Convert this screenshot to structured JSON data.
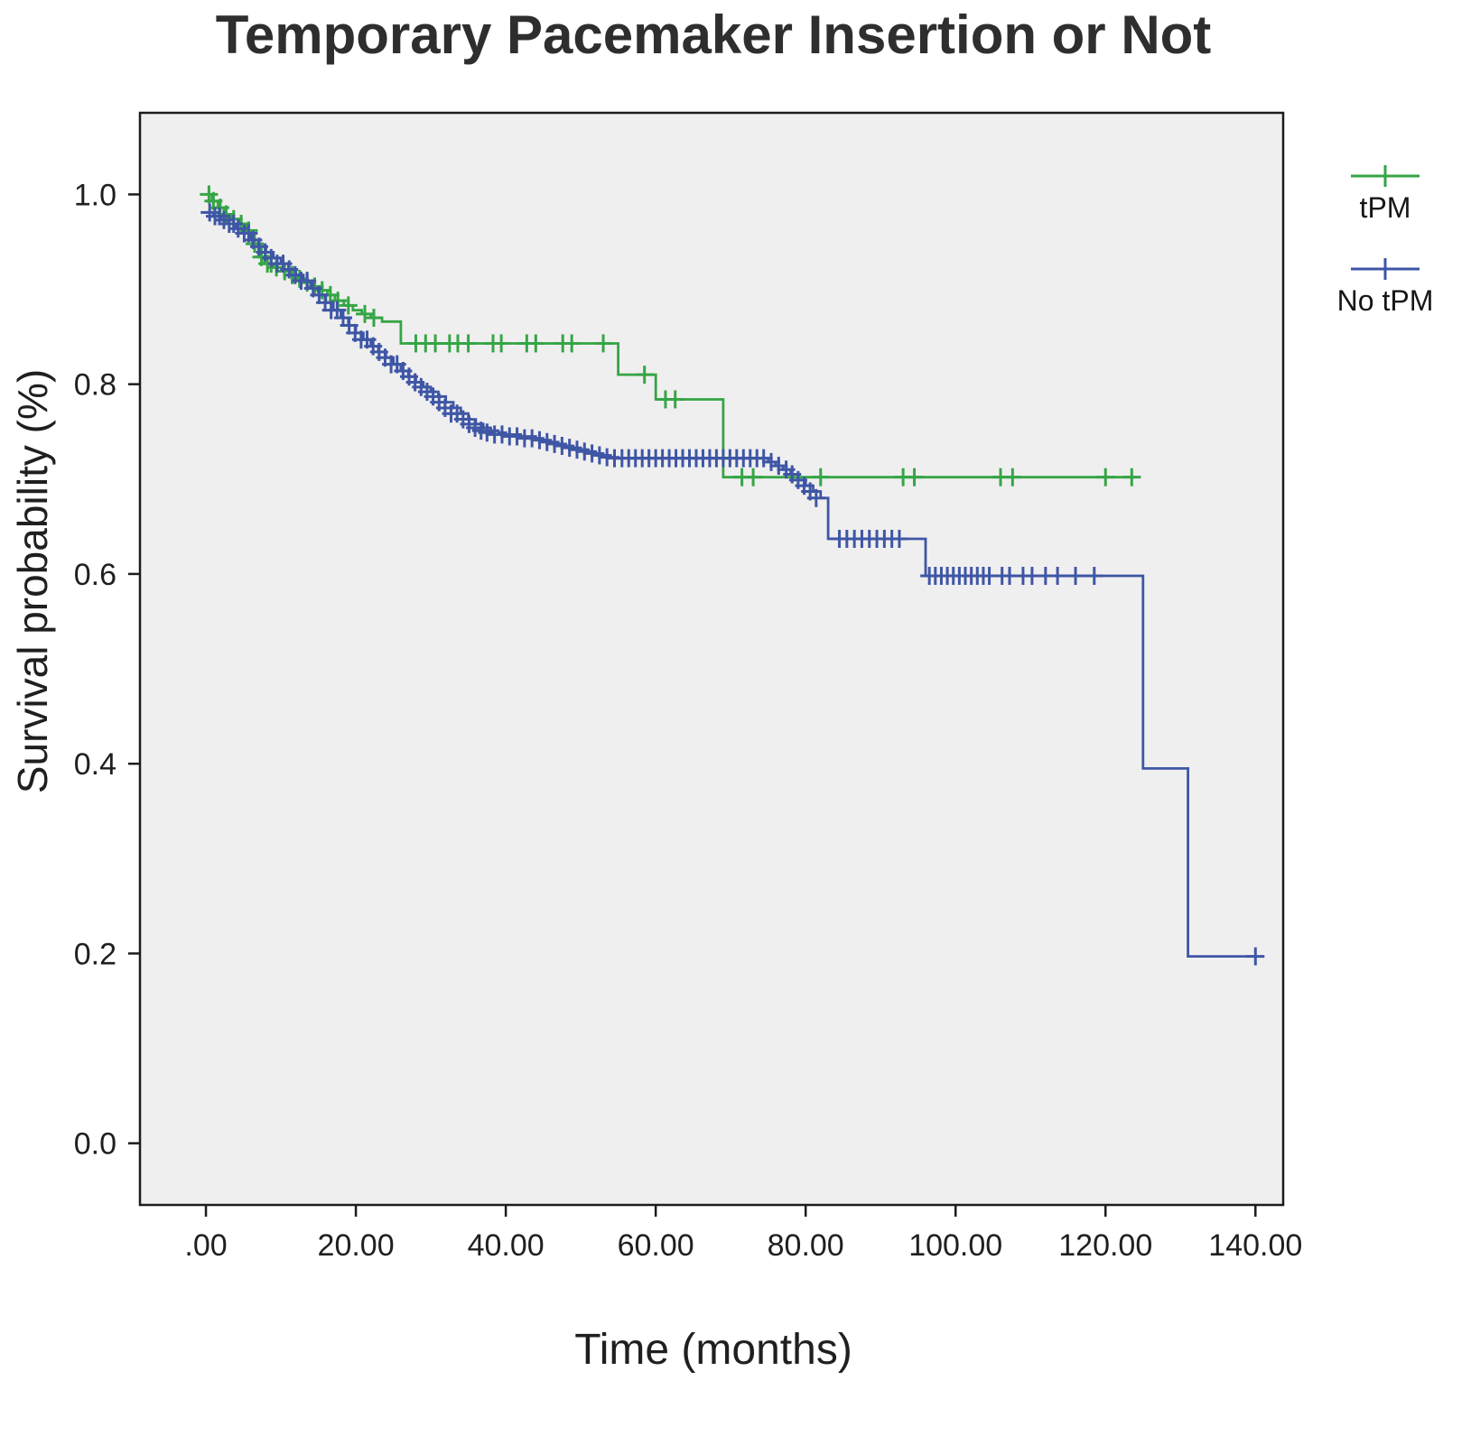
{
  "chart_data": {
    "type": "line",
    "chart_kind": "kaplan_meier_survival_step",
    "title": "Temporary Pacemaker Insertion or Not",
    "xlabel": "Time (months)",
    "ylabel": "Survival probability (%)",
    "xlim": [
      -8.8,
      143.7
    ],
    "ylim": [
      -0.065,
      1.086
    ],
    "grid": false,
    "plot_bg": "#f0efef",
    "frame_color": "#1c1c1c",
    "text_color": "#1f1f1f",
    "x_ticks": [
      {
        "value": 0,
        "label": ".00"
      },
      {
        "value": 20,
        "label": "20.00"
      },
      {
        "value": 40,
        "label": "40.00"
      },
      {
        "value": 60,
        "label": "60.00"
      },
      {
        "value": 80,
        "label": "80.00"
      },
      {
        "value": 100,
        "label": "100.00"
      },
      {
        "value": 120,
        "label": "120.00"
      },
      {
        "value": 140,
        "label": "140.00"
      }
    ],
    "y_ticks": [
      {
        "value": 0.0,
        "label": "0.0"
      },
      {
        "value": 0.2,
        "label": "0.2"
      },
      {
        "value": 0.4,
        "label": "0.4"
      },
      {
        "value": 0.6,
        "label": "0.6"
      },
      {
        "value": 0.8,
        "label": "0.8"
      },
      {
        "value": 1.0,
        "label": "1.0"
      }
    ],
    "legend": {
      "position": "right",
      "items": [
        {
          "label": "tPM",
          "color": "#35a546"
        },
        {
          "label": "No tPM",
          "color": "#3e56a5"
        }
      ]
    },
    "series": [
      {
        "id": "tpm",
        "name": "tPM",
        "color": "#35a546",
        "steps": [
          [
            0,
            1.0
          ],
          [
            0.8,
            0.993
          ],
          [
            1.6,
            0.986
          ],
          [
            2.4,
            0.979
          ],
          [
            3.4,
            0.974
          ],
          [
            4.4,
            0.969
          ],
          [
            5.4,
            0.962
          ],
          [
            6.2,
            0.948
          ],
          [
            7.0,
            0.934
          ],
          [
            7.8,
            0.927
          ],
          [
            9.0,
            0.923
          ],
          [
            10.2,
            0.919
          ],
          [
            11.2,
            0.915
          ],
          [
            12.2,
            0.911
          ],
          [
            13.2,
            0.907
          ],
          [
            14.2,
            0.903
          ],
          [
            15.2,
            0.899
          ],
          [
            16.2,
            0.894
          ],
          [
            17.2,
            0.888
          ],
          [
            18.4,
            0.883
          ],
          [
            19.6,
            0.878
          ],
          [
            20.8,
            0.874
          ],
          [
            22.0,
            0.87
          ],
          [
            23.5,
            0.866
          ],
          [
            26.0,
            0.843
          ],
          [
            55.0,
            0.81
          ],
          [
            60.0,
            0.784
          ],
          [
            69.0,
            0.702
          ],
          [
            124.0,
            0.702
          ]
        ],
        "censors": [
          [
            0.4,
            1.0
          ],
          [
            1.0,
            0.993
          ],
          [
            1.9,
            0.986
          ],
          [
            2.7,
            0.979
          ],
          [
            3.7,
            0.974
          ],
          [
            4.7,
            0.969
          ],
          [
            5.7,
            0.962
          ],
          [
            6.5,
            0.948
          ],
          [
            7.4,
            0.934
          ],
          [
            8.2,
            0.927
          ],
          [
            8.7,
            0.927
          ],
          [
            9.4,
            0.923
          ],
          [
            10.5,
            0.919
          ],
          [
            11.5,
            0.915
          ],
          [
            12.5,
            0.911
          ],
          [
            13.5,
            0.907
          ],
          [
            14.5,
            0.903
          ],
          [
            15.5,
            0.899
          ],
          [
            16.6,
            0.894
          ],
          [
            17.6,
            0.888
          ],
          [
            19.0,
            0.883
          ],
          [
            21.2,
            0.874
          ],
          [
            22.4,
            0.87
          ],
          [
            28.0,
            0.843
          ],
          [
            29.3,
            0.843
          ],
          [
            30.6,
            0.843
          ],
          [
            32.5,
            0.843
          ],
          [
            33.6,
            0.843
          ],
          [
            35.0,
            0.843
          ],
          [
            38.3,
            0.843
          ],
          [
            39.4,
            0.843
          ],
          [
            42.8,
            0.843
          ],
          [
            44.0,
            0.843
          ],
          [
            47.6,
            0.843
          ],
          [
            48.8,
            0.843
          ],
          [
            53.0,
            0.843
          ],
          [
            58.5,
            0.81
          ],
          [
            61.3,
            0.784
          ],
          [
            62.6,
            0.784
          ],
          [
            71.5,
            0.702
          ],
          [
            73.0,
            0.702
          ],
          [
            82.0,
            0.702
          ],
          [
            93.0,
            0.702
          ],
          [
            94.5,
            0.702
          ],
          [
            106.0,
            0.702
          ],
          [
            107.6,
            0.702
          ],
          [
            120.0,
            0.702
          ],
          [
            123.5,
            0.702
          ]
        ]
      },
      {
        "id": "no-tpm",
        "name": "No tPM",
        "color": "#3e56a5",
        "steps": [
          [
            0,
            0.981
          ],
          [
            1,
            0.977
          ],
          [
            2,
            0.973
          ],
          [
            3,
            0.969
          ],
          [
            4,
            0.964
          ],
          [
            5,
            0.959
          ],
          [
            6,
            0.952
          ],
          [
            7,
            0.945
          ],
          [
            8,
            0.939
          ],
          [
            9,
            0.933
          ],
          [
            10,
            0.927
          ],
          [
            11,
            0.921
          ],
          [
            12,
            0.915
          ],
          [
            13,
            0.909
          ],
          [
            14,
            0.901
          ],
          [
            15,
            0.894
          ],
          [
            16,
            0.886
          ],
          [
            17,
            0.878
          ],
          [
            18,
            0.87
          ],
          [
            19,
            0.862
          ],
          [
            20,
            0.854
          ],
          [
            21,
            0.847
          ],
          [
            22,
            0.84
          ],
          [
            23,
            0.834
          ],
          [
            24,
            0.828
          ],
          [
            25,
            0.821
          ],
          [
            26,
            0.814
          ],
          [
            27,
            0.808
          ],
          [
            28,
            0.802
          ],
          [
            29,
            0.797
          ],
          [
            30,
            0.792
          ],
          [
            31,
            0.787
          ],
          [
            32,
            0.781
          ],
          [
            33,
            0.775
          ],
          [
            34,
            0.769
          ],
          [
            35,
            0.763
          ],
          [
            36,
            0.758
          ],
          [
            37,
            0.754
          ],
          [
            38,
            0.751
          ],
          [
            39,
            0.749
          ],
          [
            40,
            0.747
          ],
          [
            42,
            0.745
          ],
          [
            44,
            0.743
          ],
          [
            45,
            0.741
          ],
          [
            46,
            0.739
          ],
          [
            47,
            0.737
          ],
          [
            48,
            0.735
          ],
          [
            49,
            0.733
          ],
          [
            50,
            0.731
          ],
          [
            51,
            0.729
          ],
          [
            52,
            0.727
          ],
          [
            53,
            0.725
          ],
          [
            54,
            0.723
          ],
          [
            55,
            0.722
          ],
          [
            75,
            0.718
          ],
          [
            76,
            0.714
          ],
          [
            77,
            0.71
          ],
          [
            78,
            0.705
          ],
          [
            79,
            0.699
          ],
          [
            80,
            0.693
          ],
          [
            81,
            0.687
          ],
          [
            82,
            0.68
          ],
          [
            83,
            0.637
          ],
          [
            96,
            0.598
          ],
          [
            125,
            0.395
          ],
          [
            131,
            0.197
          ],
          [
            140,
            0.197
          ]
        ],
        "censors": [
          [
            0.5,
            0.981
          ],
          [
            1.2,
            0.977
          ],
          [
            1.8,
            0.977
          ],
          [
            2.4,
            0.973
          ],
          [
            3.1,
            0.969
          ],
          [
            3.7,
            0.969
          ],
          [
            4.3,
            0.964
          ],
          [
            5.1,
            0.959
          ],
          [
            5.7,
            0.959
          ],
          [
            6.3,
            0.952
          ],
          [
            7.1,
            0.945
          ],
          [
            7.9,
            0.939
          ],
          [
            8.7,
            0.933
          ],
          [
            9.5,
            0.927
          ],
          [
            10.3,
            0.927
          ],
          [
            11.1,
            0.921
          ],
          [
            11.9,
            0.915
          ],
          [
            12.7,
            0.909
          ],
          [
            13.5,
            0.909
          ],
          [
            14.3,
            0.901
          ],
          [
            15.1,
            0.894
          ],
          [
            15.9,
            0.886
          ],
          [
            16.7,
            0.878
          ],
          [
            17.5,
            0.878
          ],
          [
            18.3,
            0.87
          ],
          [
            19.1,
            0.862
          ],
          [
            19.9,
            0.854
          ],
          [
            20.7,
            0.847
          ],
          [
            21.5,
            0.847
          ],
          [
            22.3,
            0.84
          ],
          [
            23.1,
            0.834
          ],
          [
            23.9,
            0.828
          ],
          [
            24.7,
            0.821
          ],
          [
            25.5,
            0.821
          ],
          [
            26.3,
            0.814
          ],
          [
            27.1,
            0.808
          ],
          [
            27.9,
            0.802
          ],
          [
            28.7,
            0.797
          ],
          [
            29.5,
            0.792
          ],
          [
            30.3,
            0.787
          ],
          [
            31.1,
            0.781
          ],
          [
            31.9,
            0.775
          ],
          [
            32.7,
            0.769
          ],
          [
            33.5,
            0.769
          ],
          [
            34.3,
            0.763
          ],
          [
            35.1,
            0.758
          ],
          [
            35.9,
            0.754
          ],
          [
            36.7,
            0.751
          ],
          [
            37.5,
            0.749
          ],
          [
            38.5,
            0.747
          ],
          [
            39.5,
            0.747
          ],
          [
            40.5,
            0.745
          ],
          [
            41.5,
            0.745
          ],
          [
            42.5,
            0.743
          ],
          [
            43.5,
            0.743
          ],
          [
            44.5,
            0.741
          ],
          [
            45.5,
            0.739
          ],
          [
            46.5,
            0.737
          ],
          [
            47.5,
            0.735
          ],
          [
            48.5,
            0.733
          ],
          [
            49.5,
            0.731
          ],
          [
            50.5,
            0.729
          ],
          [
            51.5,
            0.727
          ],
          [
            52.5,
            0.725
          ],
          [
            53.5,
            0.723
          ],
          [
            54.5,
            0.722
          ],
          [
            55.5,
            0.722
          ],
          [
            56.4,
            0.722
          ],
          [
            57.3,
            0.722
          ],
          [
            58.2,
            0.722
          ],
          [
            59.1,
            0.722
          ],
          [
            60.0,
            0.722
          ],
          [
            60.9,
            0.722
          ],
          [
            61.8,
            0.722
          ],
          [
            62.7,
            0.722
          ],
          [
            63.6,
            0.722
          ],
          [
            64.5,
            0.722
          ],
          [
            65.4,
            0.722
          ],
          [
            66.3,
            0.722
          ],
          [
            67.2,
            0.722
          ],
          [
            68.1,
            0.722
          ],
          [
            69.0,
            0.722
          ],
          [
            69.9,
            0.722
          ],
          [
            70.8,
            0.722
          ],
          [
            71.7,
            0.722
          ],
          [
            72.6,
            0.722
          ],
          [
            73.5,
            0.722
          ],
          [
            74.4,
            0.722
          ],
          [
            75.4,
            0.718
          ],
          [
            76.4,
            0.714
          ],
          [
            77.4,
            0.71
          ],
          [
            78.2,
            0.705
          ],
          [
            79.0,
            0.699
          ],
          [
            79.8,
            0.693
          ],
          [
            80.6,
            0.687
          ],
          [
            81.4,
            0.68
          ],
          [
            84.5,
            0.637
          ],
          [
            85.5,
            0.637
          ],
          [
            86.5,
            0.637
          ],
          [
            87.5,
            0.637
          ],
          [
            88.5,
            0.637
          ],
          [
            89.5,
            0.637
          ],
          [
            90.5,
            0.637
          ],
          [
            91.5,
            0.637
          ],
          [
            92.5,
            0.637
          ],
          [
            96.5,
            0.598
          ],
          [
            97.3,
            0.598
          ],
          [
            98.1,
            0.598
          ],
          [
            98.9,
            0.598
          ],
          [
            99.7,
            0.598
          ],
          [
            100.5,
            0.598
          ],
          [
            101.3,
            0.598
          ],
          [
            102.1,
            0.598
          ],
          [
            102.9,
            0.598
          ],
          [
            103.7,
            0.598
          ],
          [
            104.5,
            0.598
          ],
          [
            106.2,
            0.598
          ],
          [
            107.2,
            0.598
          ],
          [
            109.0,
            0.598
          ],
          [
            110.2,
            0.598
          ],
          [
            112.0,
            0.598
          ],
          [
            113.6,
            0.598
          ],
          [
            116.0,
            0.598
          ],
          [
            118.5,
            0.598
          ],
          [
            140.0,
            0.197
          ]
        ]
      }
    ]
  }
}
